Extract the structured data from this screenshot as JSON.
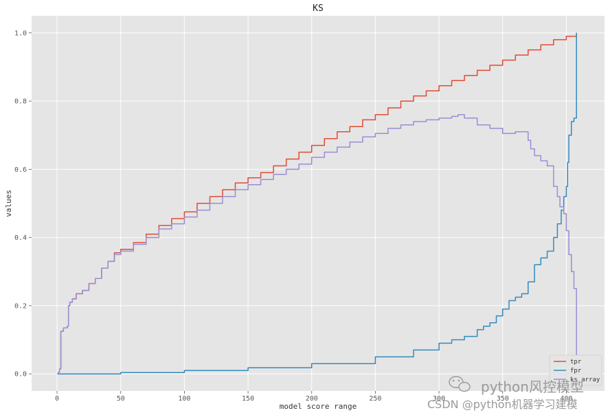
{
  "chart_data": {
    "type": "line",
    "title": "KS",
    "xlabel": "model score range",
    "ylabel": "values",
    "xlim": [
      -20,
      430
    ],
    "ylim": [
      -0.05,
      1.05
    ],
    "x_ticks": [
      0,
      50,
      100,
      150,
      200,
      250,
      300,
      350,
      400
    ],
    "y_ticks": [
      0.0,
      0.2,
      0.4,
      0.6,
      0.8,
      1.0
    ],
    "x_tick_labels": [
      "0",
      "50",
      "100",
      "150",
      "200",
      "250",
      "300",
      "350",
      "400"
    ],
    "y_tick_labels": [
      "0.0",
      "0.2",
      "0.4",
      "0.6",
      "0.8",
      "1.0"
    ],
    "grid": true,
    "legend_position": "bottom-right",
    "series": [
      {
        "name": "tpr",
        "color": "#E24A33",
        "x": [
          0,
          1,
          2,
          3,
          5,
          8,
          9,
          10,
          12,
          15,
          20,
          25,
          30,
          35,
          40,
          45,
          50,
          60,
          70,
          80,
          90,
          100,
          110,
          120,
          130,
          140,
          150,
          160,
          170,
          180,
          190,
          200,
          210,
          220,
          230,
          240,
          250,
          260,
          270,
          280,
          290,
          300,
          310,
          320,
          330,
          340,
          350,
          360,
          370,
          380,
          390,
          400,
          408
        ],
        "values": [
          0.0,
          0.005,
          0.015,
          0.125,
          0.135,
          0.14,
          0.2,
          0.21,
          0.22,
          0.235,
          0.245,
          0.265,
          0.28,
          0.31,
          0.33,
          0.355,
          0.365,
          0.385,
          0.41,
          0.435,
          0.455,
          0.475,
          0.5,
          0.52,
          0.54,
          0.56,
          0.575,
          0.59,
          0.61,
          0.63,
          0.65,
          0.67,
          0.69,
          0.71,
          0.725,
          0.745,
          0.76,
          0.78,
          0.8,
          0.815,
          0.83,
          0.845,
          0.86,
          0.875,
          0.89,
          0.905,
          0.92,
          0.935,
          0.95,
          0.965,
          0.98,
          0.99,
          1.0
        ]
      },
      {
        "name": "fpr",
        "color": "#348ABD",
        "x": [
          0,
          50,
          100,
          150,
          200,
          250,
          280,
          300,
          310,
          320,
          330,
          335,
          340,
          345,
          350,
          355,
          360,
          365,
          370,
          375,
          380,
          385,
          390,
          393,
          396,
          398,
          400,
          401,
          402,
          404,
          406,
          408
        ],
        "values": [
          0.0,
          0.004,
          0.01,
          0.018,
          0.03,
          0.05,
          0.07,
          0.09,
          0.1,
          0.11,
          0.13,
          0.14,
          0.15,
          0.17,
          0.19,
          0.215,
          0.225,
          0.235,
          0.27,
          0.32,
          0.34,
          0.36,
          0.4,
          0.44,
          0.48,
          0.52,
          0.55,
          0.62,
          0.7,
          0.74,
          0.75,
          1.0
        ]
      },
      {
        "name": "ks_array",
        "color": "#988ED5",
        "x": [
          0,
          1,
          2,
          3,
          5,
          8,
          9,
          10,
          12,
          15,
          20,
          25,
          30,
          35,
          40,
          45,
          50,
          60,
          70,
          80,
          90,
          100,
          110,
          120,
          130,
          140,
          150,
          160,
          170,
          180,
          190,
          200,
          210,
          220,
          230,
          240,
          250,
          260,
          270,
          280,
          290,
          300,
          310,
          315,
          320,
          330,
          340,
          350,
          360,
          370,
          372,
          375,
          380,
          385,
          390,
          393,
          395,
          398,
          400,
          402,
          404,
          406,
          408
        ],
        "values": [
          0.0,
          0.005,
          0.015,
          0.125,
          0.135,
          0.14,
          0.2,
          0.21,
          0.22,
          0.235,
          0.245,
          0.265,
          0.28,
          0.31,
          0.33,
          0.35,
          0.36,
          0.38,
          0.4,
          0.425,
          0.44,
          0.46,
          0.48,
          0.5,
          0.52,
          0.54,
          0.555,
          0.57,
          0.585,
          0.6,
          0.615,
          0.635,
          0.65,
          0.665,
          0.68,
          0.695,
          0.705,
          0.72,
          0.73,
          0.74,
          0.745,
          0.75,
          0.755,
          0.76,
          0.75,
          0.73,
          0.72,
          0.705,
          0.71,
          0.685,
          0.66,
          0.64,
          0.625,
          0.61,
          0.55,
          0.52,
          0.49,
          0.47,
          0.42,
          0.35,
          0.3,
          0.25,
          0.0
        ]
      }
    ]
  },
  "watermark": {
    "line1": "python风控模型",
    "line2": "CSDN @python机器学习建模"
  }
}
